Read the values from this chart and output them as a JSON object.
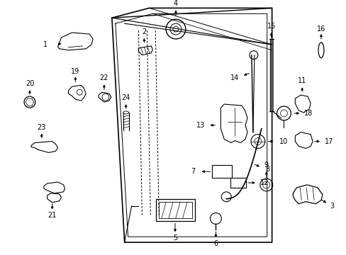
{
  "background_color": "#ffffff",
  "fig_width": 4.89,
  "fig_height": 3.6,
  "dpi": 100,
  "line_color": "#000000",
  "text_color": "#000000",
  "label_fontsize": 7.0
}
